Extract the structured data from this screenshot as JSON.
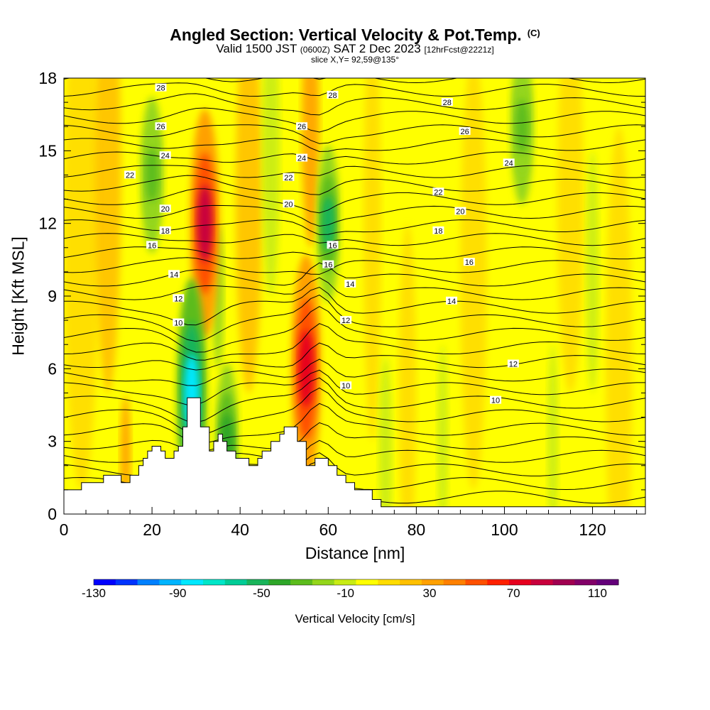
{
  "header": {
    "title": "Angled Section: Vertical Velocity & Pot.Temp.",
    "title_unit": "(C)",
    "valid_prefix": "Valid 1500 JST",
    "valid_zulu": "(0600Z)",
    "valid_date": "SAT 2 Dec 2023",
    "forecast": "[12hrFcst@2221z]",
    "slice": "slice X,Y= 92,59@135°"
  },
  "chart_data": {
    "type": "heatmap",
    "xlabel": "Distance [nm]",
    "ylabel": "Height [Kft MSL]",
    "xlim": [
      0,
      132
    ],
    "ylim": [
      0,
      18
    ],
    "x_ticks": [
      0,
      20,
      40,
      60,
      80,
      100,
      120
    ],
    "y_ticks": [
      0,
      3,
      6,
      9,
      12,
      15,
      18
    ],
    "colorbar": {
      "title": "Vertical Velocity [cm/s]",
      "range": [
        -130,
        120
      ],
      "tick_labels": [
        "-130",
        "-90",
        "-50",
        "-10",
        "30",
        "70",
        "110"
      ],
      "colors": [
        "#0000ff",
        "#0033ff",
        "#0080ff",
        "#00b4ff",
        "#00e8ff",
        "#00e6c8",
        "#00cc96",
        "#19b45a",
        "#2ea628",
        "#5cbc1c",
        "#94d61a",
        "#c8ec14",
        "#ffff00",
        "#ffdc00",
        "#ffc000",
        "#ffa000",
        "#ff8000",
        "#ff5000",
        "#ff2000",
        "#e6001e",
        "#c8003c",
        "#a00050",
        "#820068",
        "#64007a"
      ]
    },
    "vertical_velocity_features": [
      {
        "x": 32,
        "y": 12,
        "value": 80,
        "note": "strong updraft band"
      },
      {
        "x": 29,
        "y": 5,
        "value": -80,
        "note": "downdraft below"
      },
      {
        "x": 55,
        "y": 6,
        "value": 75,
        "note": "updraft core"
      },
      {
        "x": 60,
        "y": 12,
        "value": -50,
        "note": "downdraft band"
      },
      {
        "x": 20,
        "y": 14,
        "value": -30
      },
      {
        "x": 37,
        "y": 3,
        "value": -45
      },
      {
        "x": 104,
        "y": 16,
        "value": -35
      }
    ],
    "pot_temp_labels": [
      {
        "x": 22,
        "y": 17.6,
        "label": "28"
      },
      {
        "x": 22,
        "y": 16.0,
        "label": "26"
      },
      {
        "x": 23,
        "y": 14.8,
        "label": "24"
      },
      {
        "x": 15,
        "y": 14.0,
        "label": "22"
      },
      {
        "x": 23,
        "y": 12.6,
        "label": "20"
      },
      {
        "x": 23,
        "y": 11.7,
        "label": "18"
      },
      {
        "x": 20,
        "y": 11.1,
        "label": "16"
      },
      {
        "x": 25,
        "y": 9.9,
        "label": "14"
      },
      {
        "x": 26,
        "y": 8.9,
        "label": "12"
      },
      {
        "x": 26,
        "y": 7.9,
        "label": "10"
      },
      {
        "x": 61,
        "y": 17.3,
        "label": "28"
      },
      {
        "x": 54,
        "y": 16.0,
        "label": "26"
      },
      {
        "x": 54,
        "y": 14.7,
        "label": "24"
      },
      {
        "x": 51,
        "y": 13.9,
        "label": "22"
      },
      {
        "x": 51,
        "y": 12.8,
        "label": "20"
      },
      {
        "x": 61,
        "y": 11.1,
        "label": "16"
      },
      {
        "x": 60,
        "y": 10.3,
        "label": "16"
      },
      {
        "x": 65,
        "y": 9.5,
        "label": "14"
      },
      {
        "x": 64,
        "y": 8.0,
        "label": "12"
      },
      {
        "x": 64,
        "y": 5.3,
        "label": "10"
      },
      {
        "x": 87,
        "y": 17.0,
        "label": "28"
      },
      {
        "x": 91,
        "y": 15.8,
        "label": "26"
      },
      {
        "x": 101,
        "y": 14.5,
        "label": "24"
      },
      {
        "x": 85,
        "y": 13.3,
        "label": "22"
      },
      {
        "x": 90,
        "y": 12.5,
        "label": "20"
      },
      {
        "x": 85,
        "y": 11.7,
        "label": "18"
      },
      {
        "x": 92,
        "y": 10.4,
        "label": "16"
      },
      {
        "x": 88,
        "y": 8.8,
        "label": "14"
      },
      {
        "x": 102,
        "y": 6.2,
        "label": "12"
      },
      {
        "x": 98,
        "y": 4.7,
        "label": "10"
      }
    ],
    "terrain_profile": [
      {
        "x": 0,
        "y": 1.0
      },
      {
        "x": 4,
        "y": 1.0
      },
      {
        "x": 4,
        "y": 1.3
      },
      {
        "x": 9,
        "y": 1.3
      },
      {
        "x": 9,
        "y": 1.6
      },
      {
        "x": 13,
        "y": 1.6
      },
      {
        "x": 13,
        "y": 1.3
      },
      {
        "x": 15,
        "y": 1.3
      },
      {
        "x": 15,
        "y": 1.6
      },
      {
        "x": 17,
        "y": 1.6
      },
      {
        "x": 17,
        "y": 2.0
      },
      {
        "x": 18,
        "y": 2.0
      },
      {
        "x": 18,
        "y": 2.3
      },
      {
        "x": 19,
        "y": 2.3
      },
      {
        "x": 19,
        "y": 2.6
      },
      {
        "x": 20,
        "y": 2.6
      },
      {
        "x": 20,
        "y": 2.8
      },
      {
        "x": 22,
        "y": 2.8
      },
      {
        "x": 22,
        "y": 2.6
      },
      {
        "x": 23,
        "y": 2.6
      },
      {
        "x": 23,
        "y": 2.3
      },
      {
        "x": 25,
        "y": 2.3
      },
      {
        "x": 25,
        "y": 2.6
      },
      {
        "x": 26,
        "y": 2.6
      },
      {
        "x": 26,
        "y": 2.8
      },
      {
        "x": 27,
        "y": 2.8
      },
      {
        "x": 27,
        "y": 3.6
      },
      {
        "x": 28,
        "y": 3.6
      },
      {
        "x": 28,
        "y": 4.8
      },
      {
        "x": 31,
        "y": 4.8
      },
      {
        "x": 31,
        "y": 3.6
      },
      {
        "x": 33,
        "y": 3.6
      },
      {
        "x": 33,
        "y": 2.6
      },
      {
        "x": 34,
        "y": 2.6
      },
      {
        "x": 34,
        "y": 3.0
      },
      {
        "x": 35,
        "y": 3.0
      },
      {
        "x": 35,
        "y": 3.3
      },
      {
        "x": 36,
        "y": 3.3
      },
      {
        "x": 36,
        "y": 3.0
      },
      {
        "x": 37,
        "y": 3.0
      },
      {
        "x": 37,
        "y": 2.6
      },
      {
        "x": 39,
        "y": 2.6
      },
      {
        "x": 39,
        "y": 2.3
      },
      {
        "x": 42,
        "y": 2.3
      },
      {
        "x": 42,
        "y": 2.0
      },
      {
        "x": 44,
        "y": 2.0
      },
      {
        "x": 44,
        "y": 2.3
      },
      {
        "x": 45,
        "y": 2.3
      },
      {
        "x": 45,
        "y": 2.6
      },
      {
        "x": 47,
        "y": 2.6
      },
      {
        "x": 47,
        "y": 3.0
      },
      {
        "x": 49,
        "y": 3.0
      },
      {
        "x": 49,
        "y": 3.3
      },
      {
        "x": 50,
        "y": 3.3
      },
      {
        "x": 50,
        "y": 3.6
      },
      {
        "x": 53,
        "y": 3.6
      },
      {
        "x": 53,
        "y": 3.0
      },
      {
        "x": 55,
        "y": 3.0
      },
      {
        "x": 55,
        "y": 2.0
      },
      {
        "x": 57,
        "y": 2.0
      },
      {
        "x": 57,
        "y": 2.3
      },
      {
        "x": 60,
        "y": 2.3
      },
      {
        "x": 60,
        "y": 2.0
      },
      {
        "x": 62,
        "y": 2.0
      },
      {
        "x": 62,
        "y": 1.6
      },
      {
        "x": 64,
        "y": 1.6
      },
      {
        "x": 64,
        "y": 1.3
      },
      {
        "x": 66,
        "y": 1.3
      },
      {
        "x": 66,
        "y": 1.0
      },
      {
        "x": 70,
        "y": 1.0
      },
      {
        "x": 70,
        "y": 0.6
      },
      {
        "x": 72,
        "y": 0.6
      },
      {
        "x": 72,
        "y": 0.3
      },
      {
        "x": 132,
        "y": 0.3
      }
    ]
  }
}
